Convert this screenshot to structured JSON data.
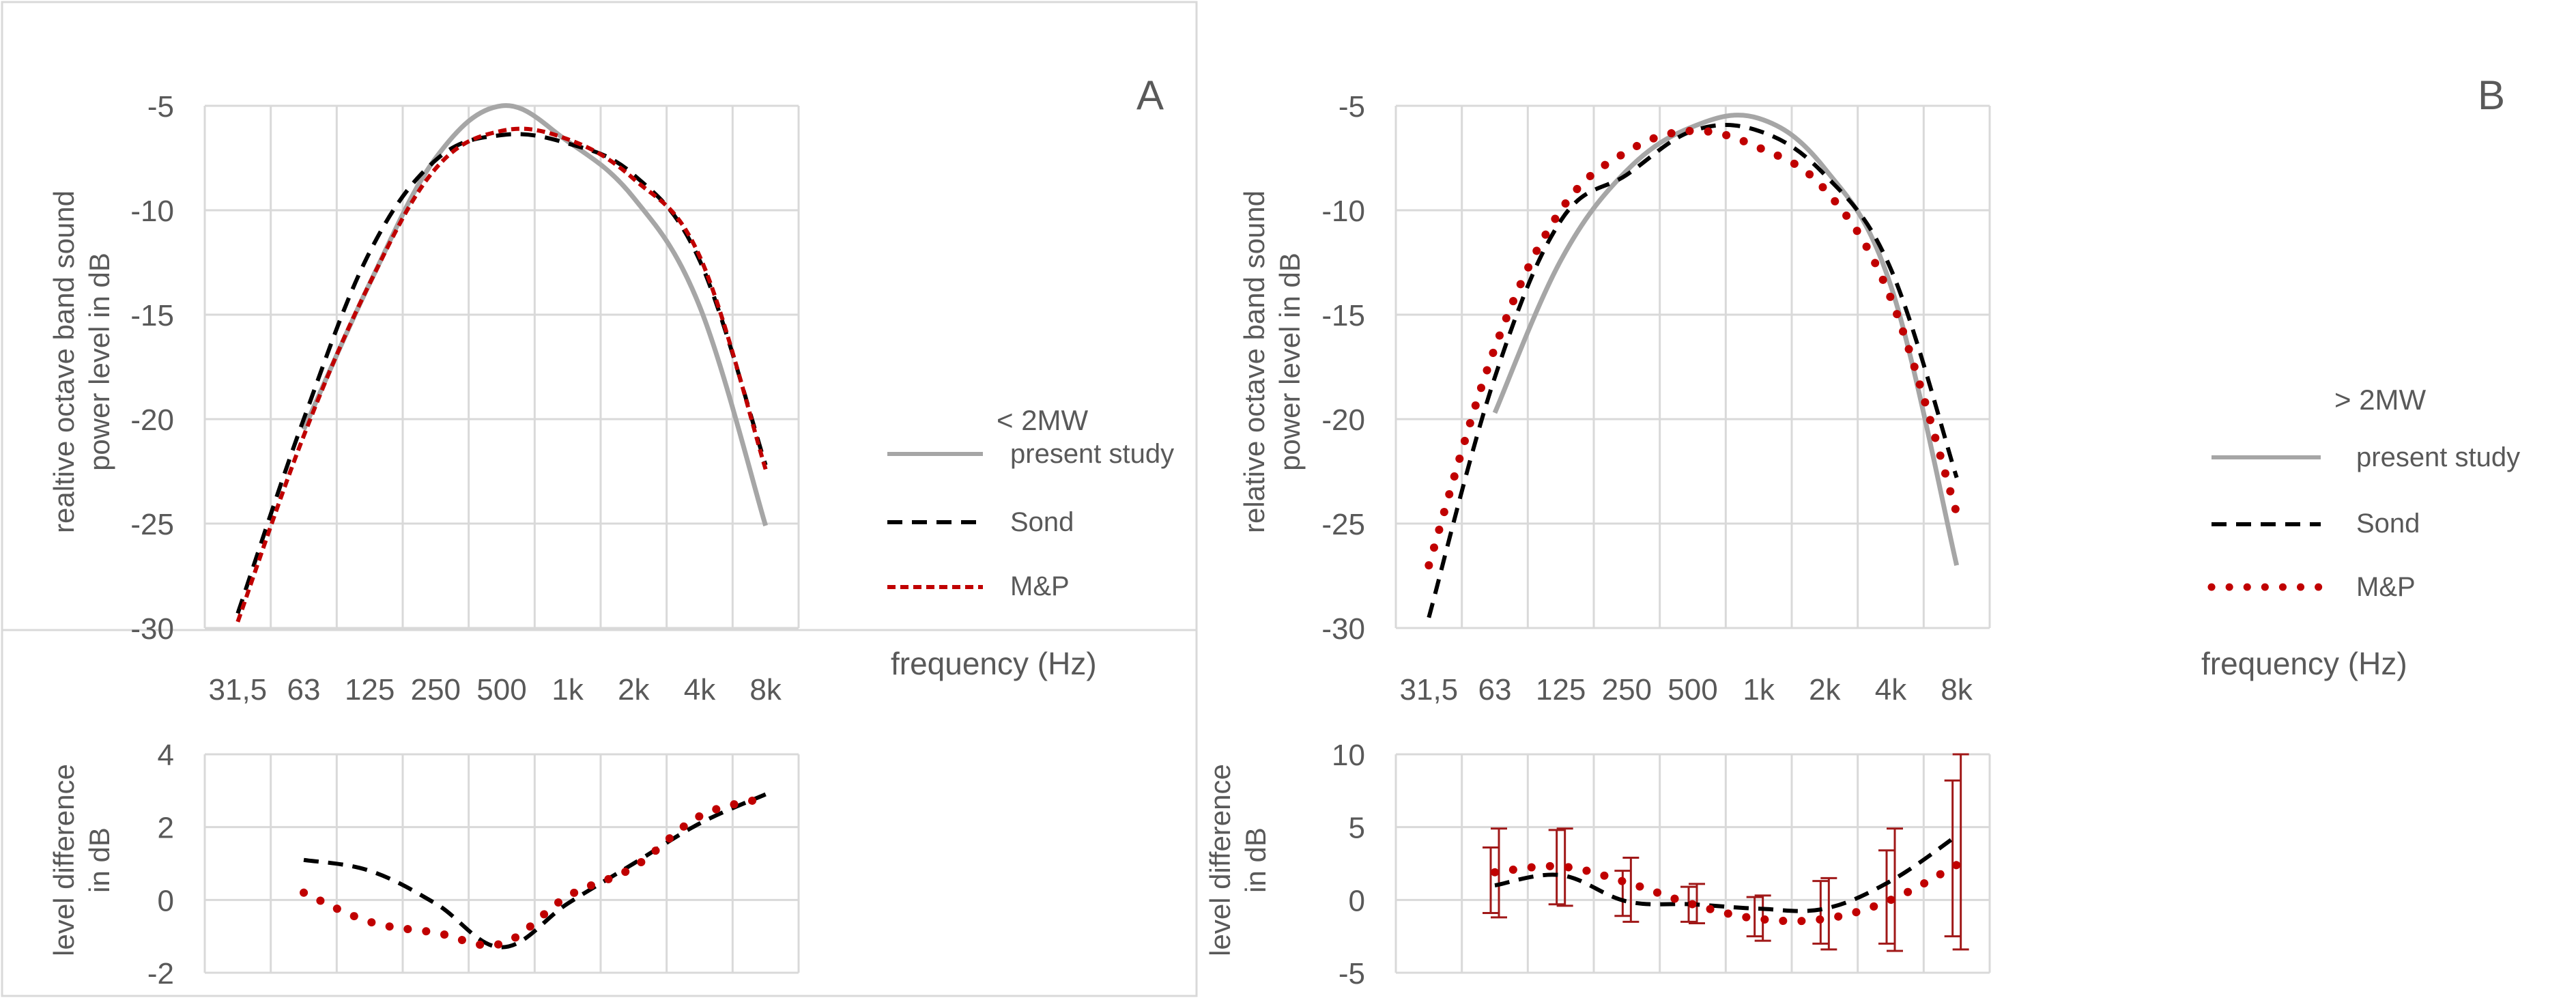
{
  "categories": [
    "31,5",
    "63",
    "125",
    "250",
    "500",
    "1k",
    "2k",
    "4k",
    "8k"
  ],
  "colors": {
    "present": "#a6a6a6",
    "sond": "#000000",
    "mp": "#c00000",
    "grid": "#d9d9d9",
    "text": "#595959",
    "frame": "#d9d9d9"
  },
  "panels": [
    {
      "letter": "A",
      "legend_title": "< 2MW",
      "legend": [
        "present study",
        "Sond",
        "M&P"
      ],
      "xlabel": "frequency (Hz)",
      "ylabel": [
        "realtive octave band sound",
        "power  level in dB"
      ],
      "ylabel_diff": [
        "level difference",
        "in dB"
      ]
    },
    {
      "letter": "B",
      "legend_title": "> 2MW",
      "legend": [
        "present study",
        "Sond",
        "M&P"
      ],
      "xlabel": "frequency (Hz)",
      "ylabel": [
        "relative octave band sound",
        "power  level in dB"
      ],
      "ylabel_diff": [
        "level difference",
        "in dB"
      ]
    }
  ],
  "chart_data": [
    {
      "type": "line",
      "panel": "A",
      "categories": [
        "31,5",
        "63",
        "125",
        "250",
        "500",
        "1k",
        "2k",
        "4k",
        "8k"
      ],
      "ylim": [
        -30,
        -5
      ],
      "yticks": [
        -5,
        -10,
        -15,
        -20,
        -25,
        -30
      ],
      "series": [
        {
          "name": "present study",
          "values": [
            null,
            -20.5,
            -13.5,
            -7.5,
            -5.0,
            -6.7,
            -9.4,
            -14.6,
            -25.1
          ]
        },
        {
          "name": "Sond",
          "values": [
            -29.3,
            -20.0,
            -12.0,
            -7.6,
            -6.4,
            -6.8,
            -8.3,
            -12.4,
            -22.2
          ]
        },
        {
          "name": "M&P",
          "values": [
            -29.7,
            -20.8,
            -13.5,
            -8.0,
            -6.2,
            -6.6,
            -8.5,
            -12.2,
            -22.4
          ]
        }
      ],
      "grid": true
    },
    {
      "type": "line",
      "panel": "A-difference",
      "categories": [
        "31,5",
        "63",
        "125",
        "250",
        "500",
        "1k",
        "2k",
        "4k",
        "8k"
      ],
      "ylim": [
        -2,
        4
      ],
      "yticks": [
        4,
        2,
        0,
        -2
      ],
      "series": [
        {
          "name": "Sond",
          "values": [
            null,
            1.1,
            0.8,
            -0.1,
            -1.3,
            -0.1,
            1.0,
            2.1,
            2.9
          ]
        },
        {
          "name": "M&P",
          "values": [
            null,
            0.2,
            -0.6,
            -0.9,
            -1.2,
            0.1,
            0.9,
            2.3,
            2.8
          ]
        }
      ],
      "grid": true
    },
    {
      "type": "line",
      "panel": "B",
      "categories": [
        "31,5",
        "63",
        "125",
        "250",
        "500",
        "1k",
        "2k",
        "4k",
        "8k"
      ],
      "ylim": [
        -30,
        -5
      ],
      "yticks": [
        -5,
        -10,
        -15,
        -20,
        -25,
        -30
      ],
      "series": [
        {
          "name": "present study",
          "values": [
            null,
            -19.7,
            -12.4,
            -8.1,
            -6.0,
            -5.6,
            -8.0,
            -13.6,
            -27.0
          ]
        },
        {
          "name": "Sond",
          "values": [
            -29.5,
            -18.0,
            -10.5,
            -8.3,
            -6.2,
            -6.2,
            -8.3,
            -12.8,
            -22.8
          ]
        },
        {
          "name": "M&P",
          "values": [
            -27.0,
            -16.6,
            -10.0,
            -7.2,
            -6.2,
            -7.0,
            -9.0,
            -14.2,
            -24.5
          ]
        }
      ],
      "grid": true
    },
    {
      "type": "line",
      "panel": "B-difference",
      "categories": [
        "31,5",
        "63",
        "125",
        "250",
        "500",
        "1k",
        "2k",
        "4k",
        "8k"
      ],
      "ylim": [
        -5,
        10
      ],
      "yticks": [
        10,
        5,
        0,
        -5
      ],
      "series": [
        {
          "name": "Sond",
          "values": [
            null,
            1.0,
            1.7,
            -0.1,
            -0.3,
            -0.6,
            -0.6,
            1.3,
            4.4
          ]
        },
        {
          "name": "M&P",
          "values": [
            null,
            1.9,
            2.3,
            1.2,
            -0.3,
            -1.3,
            -1.3,
            0.0,
            2.4
          ]
        }
      ],
      "error_bars": {
        "Sond": [
          null,
          [
            -0.9,
            3.6
          ],
          [
            -0.3,
            4.8
          ],
          [
            -1.1,
            2.0
          ],
          [
            -1.5,
            0.9
          ],
          [
            -2.5,
            0.2
          ],
          [
            -3.0,
            1.3
          ],
          [
            -3.0,
            3.4
          ],
          [
            -2.5,
            8.2
          ]
        ],
        "M&P": [
          null,
          [
            -1.2,
            4.9
          ],
          [
            -0.4,
            4.9
          ],
          [
            -1.5,
            2.9
          ],
          [
            -1.6,
            1.1
          ],
          [
            -2.8,
            0.3
          ],
          [
            -3.4,
            1.5
          ],
          [
            -3.5,
            4.9
          ],
          [
            -3.4,
            10.0
          ]
        ]
      },
      "grid": true
    }
  ]
}
